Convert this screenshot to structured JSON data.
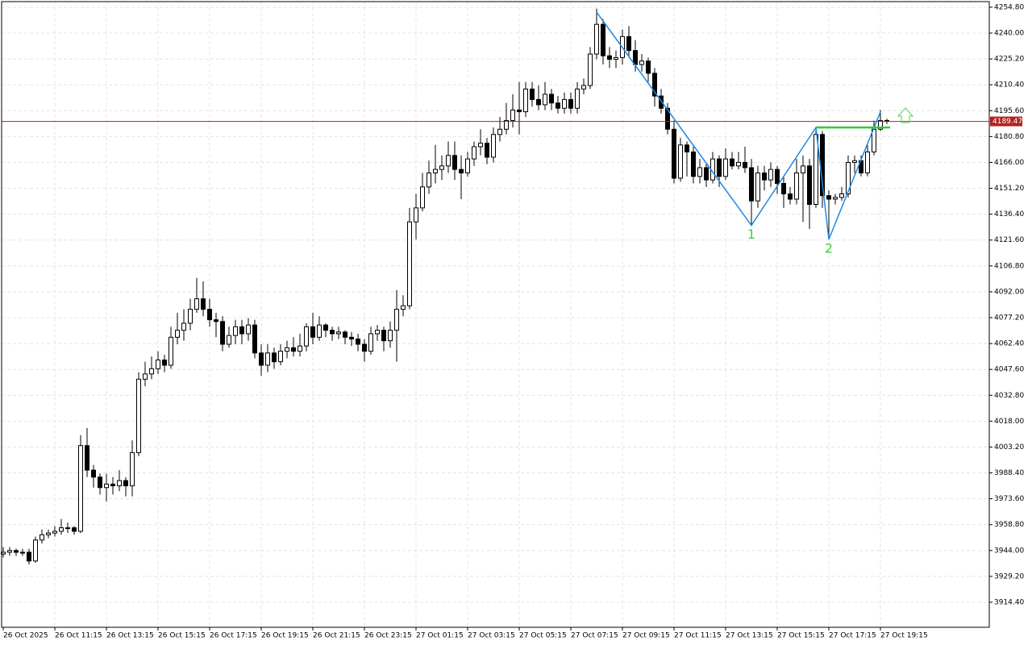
{
  "chart_data": {
    "type": "candlestick",
    "categories": [
      "26 Oct 2025",
      null,
      null,
      null,
      null,
      null,
      null,
      null,
      "26 Oct 11:15",
      null,
      null,
      null,
      null,
      null,
      null,
      null,
      "26 Oct 13:15",
      null,
      null,
      null,
      null,
      null,
      null,
      null,
      "26 Oct 15:15",
      null,
      null,
      null,
      null,
      null,
      null,
      null,
      "26 Oct 17:15",
      null,
      null,
      null,
      null,
      null,
      null,
      null,
      "26 Oct 19:15",
      null,
      null,
      null,
      null,
      null,
      null,
      null,
      "26 Oct 21:15",
      null,
      null,
      null,
      null,
      null,
      null,
      null,
      "26 Oct 23:15",
      null,
      null,
      null,
      null,
      null,
      null,
      null,
      "27 Oct 01:15",
      null,
      null,
      null,
      null,
      null,
      null,
      null,
      "27 Oct 03:15",
      null,
      null,
      null,
      null,
      null,
      null,
      null,
      "27 Oct 05:15",
      null,
      null,
      null,
      null,
      null,
      null,
      null,
      "27 Oct 07:15",
      null,
      null,
      null,
      null,
      null,
      null,
      null,
      "27 Oct 09:15",
      null,
      null,
      null,
      null,
      null,
      null,
      null,
      "27 Oct 11:15",
      null,
      null,
      null,
      null,
      null,
      null,
      null,
      "27 Oct 13:15",
      null,
      null,
      null,
      null,
      null,
      null,
      null,
      "27 Oct 15:15",
      null,
      null,
      null,
      null,
      null,
      null,
      null,
      "27 Oct 17:15",
      null,
      null,
      null,
      null,
      null,
      null,
      null,
      "27 Oct 19:15",
      null
    ],
    "open": [
      3942,
      3943,
      3944,
      3943,
      3943,
      3938,
      3950,
      3953,
      3954,
      3955,
      3957,
      3957,
      3955,
      4004,
      3990,
      3986,
      3980,
      3982,
      3981,
      3984,
      3981,
      4000,
      4042,
      4045,
      4048,
      4053,
      4050,
      4066,
      4070,
      4074,
      4082,
      4088,
      4082,
      4076,
      4075,
      4062,
      4067,
      4072,
      4068,
      4073,
      4057,
      4050,
      4057,
      4052,
      4058,
      4060,
      4058,
      4061,
      4072,
      4066,
      4073,
      4070,
      4068,
      4069,
      4066,
      4065,
      4062,
      4058,
      4068,
      4070,
      4064,
      4070,
      4082,
      4084,
      4132,
      4140,
      4152,
      4160,
      4162,
      4164,
      4170,
      4162,
      4160,
      4168,
      4175,
      4177,
      4169,
      4182,
      4185,
      4190,
      4196,
      4195,
      4208,
      4202,
      4199,
      4205,
      4200,
      4197,
      4202,
      4197,
      4208,
      4210,
      4228,
      4245,
      4227,
      4225,
      4226,
      4238,
      4230,
      4222,
      4224,
      4217,
      4204,
      4197,
      4185,
      4157,
      4176,
      4172,
      4158,
      4163,
      4156,
      4168,
      4158,
      4168,
      4164,
      4166,
      4163,
      4144,
      4160,
      4156,
      4162,
      4154,
      4148,
      4145,
      4160,
      4164,
      4142,
      4182,
      4147,
      4145,
      4146,
      4148,
      4166,
      4167,
      4160,
      4172,
      4185,
      4190
    ],
    "high": [
      3946,
      3946,
      3945,
      3945,
      3945,
      3952,
      3956,
      3956,
      3958,
      3962,
      3960,
      3958,
      4010,
      4014,
      3993,
      3988,
      3988,
      3986,
      3990,
      3986,
      4007,
      4046,
      4052,
      4055,
      4058,
      4056,
      4072,
      4080,
      4082,
      4088,
      4100,
      4098,
      4088,
      4080,
      4078,
      4072,
      4076,
      4076,
      4077,
      4076,
      4062,
      4062,
      4060,
      4062,
      4064,
      4066,
      4068,
      4074,
      4080,
      4078,
      4074,
      4072,
      4072,
      4070,
      4069,
      4068,
      4065,
      4072,
      4073,
      4072,
      4075,
      4093,
      4090,
      4140,
      4148,
      4160,
      4167,
      4176,
      4170,
      4178,
      4178,
      4170,
      4172,
      4178,
      4185,
      4180,
      4186,
      4192,
      4200,
      4205,
      4212,
      4212,
      4212,
      4210,
      4212,
      4208,
      4204,
      4206,
      4206,
      4212,
      4214,
      4232,
      4254,
      4248,
      4232,
      4230,
      4242,
      4244,
      4236,
      4228,
      4226,
      4220,
      4208,
      4200,
      4190,
      4180,
      4178,
      4175,
      4168,
      4166,
      4172,
      4170,
      4174,
      4172,
      4172,
      4175,
      4168,
      4164,
      4164,
      4166,
      4164,
      4158,
      4152,
      4168,
      4170,
      4168,
      4186,
      4184,
      4150,
      4148,
      4152,
      4170,
      4170,
      4170,
      4176,
      4190,
      4196,
      4191
    ],
    "low": [
      3940,
      3941,
      3941,
      3941,
      3936,
      3937,
      3948,
      3951,
      3952,
      3953,
      3954,
      3953,
      3954,
      3986,
      3980,
      3976,
      3972,
      3976,
      3978,
      3975,
      3975,
      3998,
      4038,
      4042,
      4045,
      4046,
      4048,
      4062,
      4064,
      4070,
      4080,
      4078,
      4072,
      4066,
      4058,
      4060,
      4062,
      4062,
      4064,
      4054,
      4044,
      4046,
      4048,
      4050,
      4054,
      4055,
      4055,
      4058,
      4062,
      4064,
      4066,
      4064,
      4065,
      4062,
      4061,
      4058,
      4052,
      4056,
      4064,
      4058,
      4060,
      4052,
      4078,
      4082,
      4122,
      4138,
      4148,
      4154,
      4156,
      4160,
      4156,
      4145,
      4158,
      4164,
      4170,
      4165,
      4166,
      4178,
      4182,
      4186,
      4182,
      4192,
      4198,
      4196,
      4196,
      4196,
      4194,
      4194,
      4194,
      4194,
      4205,
      4208,
      4225,
      4222,
      4220,
      4220,
      4222,
      4226,
      4218,
      4218,
      4212,
      4198,
      4194,
      4182,
      4154,
      4155,
      4158,
      4154,
      4154,
      4152,
      4154,
      4152,
      4156,
      4162,
      4162,
      4160,
      4130,
      4140,
      4150,
      4152,
      4148,
      4140,
      4142,
      4142,
      4132,
      4128,
      4140,
      4140,
      4122,
      4142,
      4144,
      4146,
      4160,
      4158,
      4158,
      4170,
      4184,
      4188
    ],
    "close": [
      3943,
      3944,
      3943,
      3943,
      3938,
      3950,
      3953,
      3954,
      3955,
      3957,
      3957,
      3955,
      4004,
      3990,
      3986,
      3980,
      3982,
      3981,
      3984,
      3981,
      4000,
      4042,
      4045,
      4048,
      4053,
      4050,
      4066,
      4070,
      4074,
      4082,
      4088,
      4082,
      4076,
      4075,
      4062,
      4067,
      4072,
      4068,
      4073,
      4057,
      4050,
      4057,
      4052,
      4058,
      4060,
      4058,
      4061,
      4072,
      4066,
      4073,
      4070,
      4068,
      4069,
      4066,
      4065,
      4062,
      4058,
      4068,
      4070,
      4064,
      4070,
      4082,
      4084,
      4132,
      4140,
      4152,
      4160,
      4162,
      4164,
      4170,
      4162,
      4160,
      4168,
      4175,
      4177,
      4169,
      4182,
      4185,
      4190,
      4196,
      4195,
      4208,
      4202,
      4199,
      4205,
      4200,
      4197,
      4202,
      4197,
      4208,
      4210,
      4228,
      4245,
      4227,
      4225,
      4226,
      4238,
      4230,
      4222,
      4224,
      4217,
      4204,
      4197,
      4185,
      4157,
      4176,
      4172,
      4158,
      4163,
      4156,
      4168,
      4158,
      4168,
      4164,
      4166,
      4163,
      4144,
      4160,
      4156,
      4162,
      4154,
      4148,
      4145,
      4160,
      4164,
      4142,
      4182,
      4147,
      4145,
      4146,
      4148,
      4166,
      4167,
      4160,
      4172,
      4185,
      4190,
      4189.47
    ],
    "ylim": [
      3900.1,
      4258.0
    ],
    "yticks": [
      {
        "value": 4254.8,
        "label": "4254.80"
      },
      {
        "value": 4240.0,
        "label": "4240.00"
      },
      {
        "value": 4225.2,
        "label": "4225.20"
      },
      {
        "value": 4210.4,
        "label": "4210.40"
      },
      {
        "value": 4195.6,
        "label": "4195.60"
      },
      {
        "value": 4180.8,
        "label": "4180.80"
      },
      {
        "value": 4166.0,
        "label": "4166.00"
      },
      {
        "value": 4151.2,
        "label": "4151.20"
      },
      {
        "value": 4136.4,
        "label": "4136.40"
      },
      {
        "value": 4121.6,
        "label": "4121.60"
      },
      {
        "value": 4106.8,
        "label": "4106.80"
      },
      {
        "value": 4092.0,
        "label": "4092.00"
      },
      {
        "value": 4077.2,
        "label": "4077.20"
      },
      {
        "value": 4062.4,
        "label": "4062.40"
      },
      {
        "value": 4047.6,
        "label": "4047.60"
      },
      {
        "value": 4032.8,
        "label": "4032.80"
      },
      {
        "value": 4018.0,
        "label": "4018.00"
      },
      {
        "value": 4003.2,
        "label": "4003.20"
      },
      {
        "value": 3988.4,
        "label": "3988.40"
      },
      {
        "value": 3973.6,
        "label": "3973.60"
      },
      {
        "value": 3958.8,
        "label": "3958.80"
      },
      {
        "value": 3944.0,
        "label": "3944.00"
      },
      {
        "value": 3929.2,
        "label": "3929.20"
      },
      {
        "value": 3914.4,
        "label": "3914.40"
      }
    ],
    "grid": true,
    "last_price": 4189.47,
    "last_price_color": "#b22222",
    "pattern": {
      "x": [
        92,
        116,
        126,
        128,
        136
      ],
      "values": [
        4252,
        4130,
        4186,
        4122,
        4195
      ],
      "color": "#1e88e5",
      "labels": [
        "1",
        "2"
      ],
      "label_color": "#3dd23d"
    },
    "neckline": {
      "x": [
        126,
        137.5
      ],
      "value": 4186,
      "color": "#33cc33"
    }
  }
}
